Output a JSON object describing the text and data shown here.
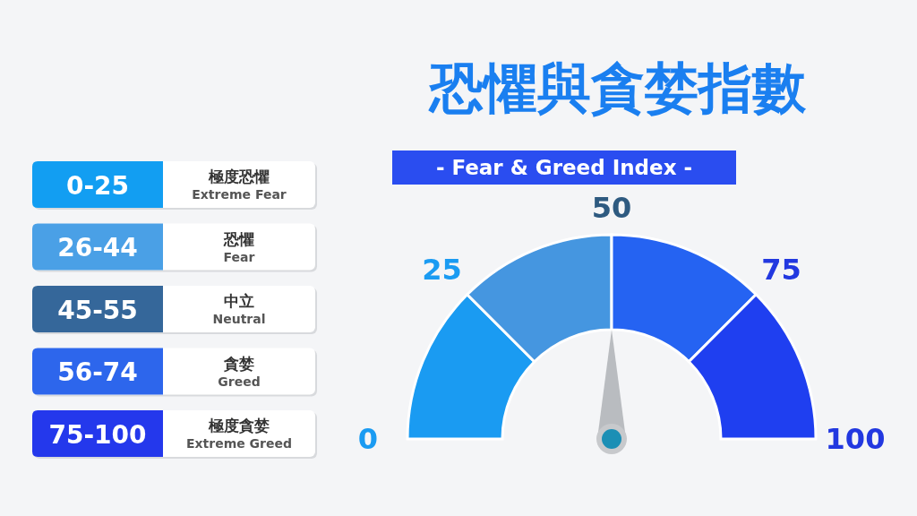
{
  "chart_data": [
    {
      "type": "donut",
      "title": "恐懼與貪婪指數",
      "subtitle": "- Fear & Greed Index -",
      "categories": [
        null,
        null,
        null,
        null
      ],
      "values": [
        25,
        25,
        25,
        25
      ],
      "colors": [
        "#1a9bf2",
        "#4596e0",
        "#2563f2",
        "#1f3ff0"
      ],
      "annotations": [
        "0",
        "25",
        "50",
        "75",
        "100"
      ]
    },
    {
      "type": "other",
      "annotations": [
        "0-25",
        "極度恐懼",
        "Extreme Fear",
        "26-44",
        "恐懼",
        "Fear",
        "45-55",
        "中立",
        "Neutral",
        "56-74",
        "貪婪",
        "Greed",
        "75-100",
        "極度貪婪",
        "Extreme Greed"
      ],
      "colors": [
        "#129ef2",
        "#4aa0e6",
        "#35679a",
        "#2d66ec",
        "#2438ec"
      ]
    }
  ]
}
